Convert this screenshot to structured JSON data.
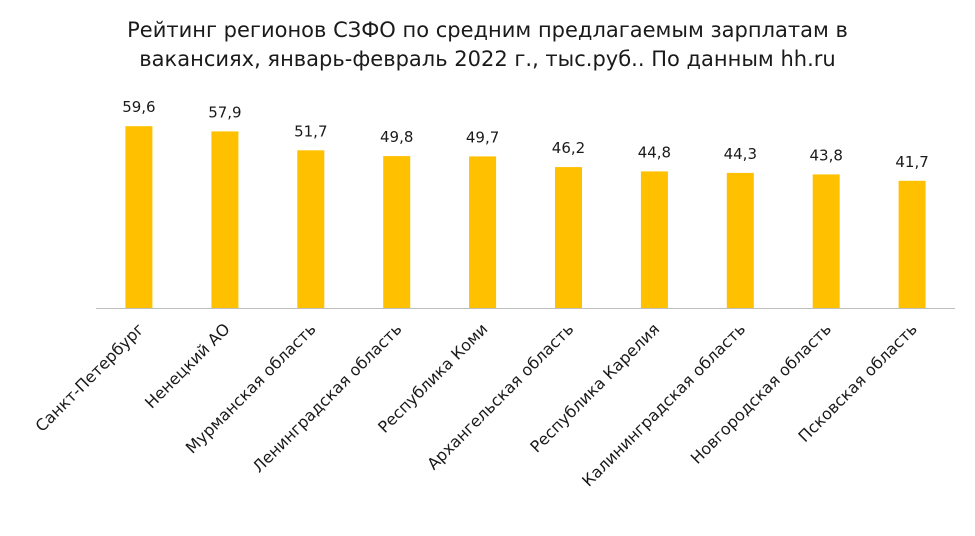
{
  "chart_data": {
    "type": "bar",
    "title_lines": [
      "Рейтинг регионов СЗФО по средним предлагаемым зарплатам в",
      "вакансиях, январь-февраль 2022 г., тыс.руб.. По данным hh.ru"
    ],
    "categories": [
      "Санкт-Петербург",
      "Ненецкий АО",
      "Мурманская область",
      "Ленинградская область",
      "Республика Коми",
      "Архангельская область",
      "Республика Карелия",
      "Калининградская область",
      "Новгородская область",
      "Псковская область"
    ],
    "values": [
      59.6,
      57.9,
      51.7,
      49.8,
      49.7,
      46.2,
      44.8,
      44.3,
      43.8,
      41.7
    ],
    "value_labels": [
      "59,6",
      "57,9",
      "51,7",
      "49,8",
      "49,7",
      "46,2",
      "44,8",
      "44,3",
      "43,8",
      "41,7"
    ],
    "ylim": [
      0,
      60
    ],
    "grid": false,
    "legend": "none",
    "bar_color": "#FFC000",
    "axis_color": "#BFBFBF"
  }
}
